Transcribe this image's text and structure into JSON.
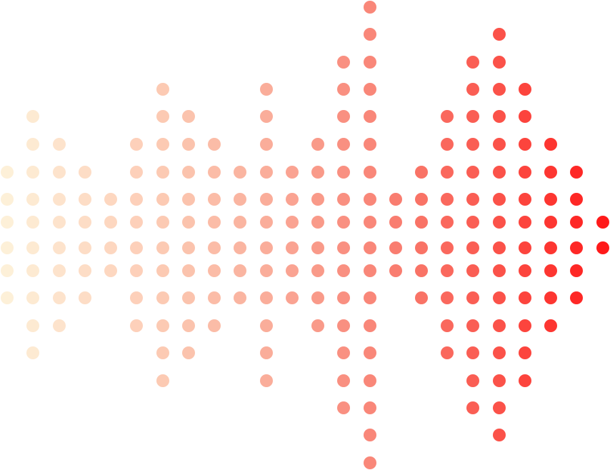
{
  "pattern": {
    "shape": "dot-grid sound-wave",
    "color_stops": [
      "#fdf0d8",
      "#fdd3bc",
      "#fab4a0",
      "#f9897b",
      "#fa5a50",
      "#ff1a1a"
    ],
    "columns": [
      [
        6,
        11
      ],
      [
        4,
        13
      ],
      [
        5,
        12
      ],
      [
        6,
        11
      ],
      [
        7,
        10
      ],
      [
        5,
        12
      ],
      [
        3,
        14
      ],
      [
        4,
        13
      ],
      [
        5,
        12
      ],
      [
        6,
        11
      ],
      [
        3,
        14
      ],
      [
        6,
        11
      ],
      [
        5,
        12
      ],
      [
        2,
        15
      ],
      [
        0,
        17
      ],
      [
        7,
        10
      ],
      [
        6,
        11
      ],
      [
        4,
        13
      ],
      [
        2,
        15
      ],
      [
        1,
        16
      ],
      [
        3,
        14
      ],
      [
        5,
        12
      ],
      [
        6,
        11
      ],
      [
        8,
        9
      ]
    ]
  }
}
